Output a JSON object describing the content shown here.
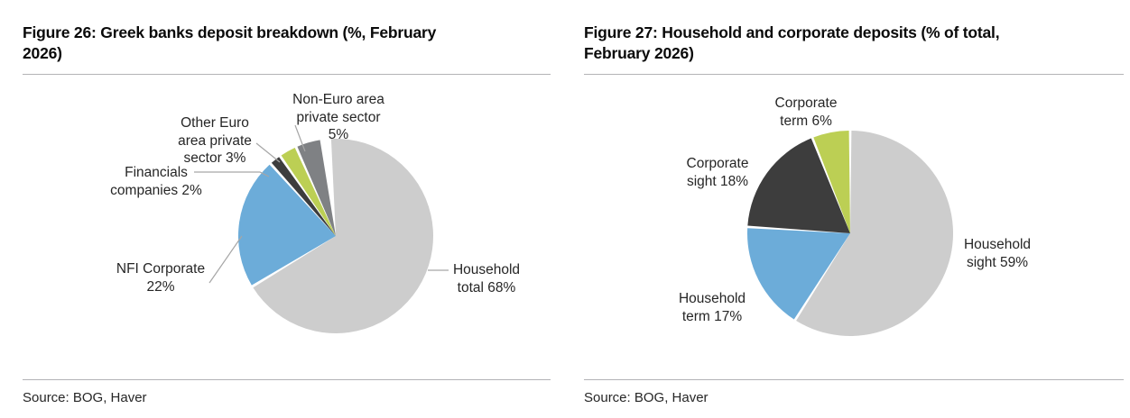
{
  "page": {
    "background": "#ffffff"
  },
  "colors": {
    "leader_line": "#a6a6a6",
    "divider": "#b3b3b6",
    "title_text": "#0a0a0a",
    "label_text": "#262626"
  },
  "chart_data": [
    {
      "type": "pie",
      "figure_id": "Figure 26",
      "title_lines": [
        "Figure 26: Greek banks deposit breakdown (%, February",
        "2026)"
      ],
      "source": "Source: BOG, Haver",
      "start_angle_deg": -6,
      "clockwise": true,
      "legend": "none",
      "labels_position": "outside with leader lines",
      "slices": [
        {
          "label": "Household total",
          "value_pct": 68,
          "color": "#cdcdcd",
          "label_lines": [
            "Household",
            "total 68%"
          ]
        },
        {
          "label": "NFI Corporate",
          "value_pct": 22,
          "color": "#6cacd9",
          "label_lines": [
            "NFI Corporate",
            "22%"
          ]
        },
        {
          "label": "Financials companies",
          "value_pct": 2,
          "color": "#3d3d3d",
          "label_lines": [
            "Financials",
            "companies 2%"
          ]
        },
        {
          "label": "Other Euro area private sector",
          "value_pct": 3,
          "color": "#bccf54",
          "label_lines": [
            "Other Euro",
            "area private",
            "sector 3%"
          ]
        },
        {
          "label": "Non-Euro area private sector",
          "value_pct": 5,
          "color": "#7f8184",
          "label_lines": [
            "Non-Euro area",
            "private sector",
            "5%"
          ]
        }
      ]
    },
    {
      "type": "pie",
      "figure_id": "Figure 27",
      "title_lines": [
        "Figure 27: Household and corporate deposits (% of total,",
        "February 2026)"
      ],
      "source": "Source: BOG, Haver",
      "start_angle_deg": 0,
      "clockwise": true,
      "legend": "none",
      "labels_position": "outside",
      "slices": [
        {
          "label": "Household sight",
          "value_pct": 59,
          "color": "#cdcdcd",
          "label_lines": [
            "Household",
            "sight 59%"
          ]
        },
        {
          "label": "Household term",
          "value_pct": 17,
          "color": "#6cacd9",
          "label_lines": [
            "Household",
            "term 17%"
          ]
        },
        {
          "label": "Corporate sight",
          "value_pct": 18,
          "color": "#3d3d3d",
          "label_lines": [
            "Corporate",
            "sight 18%"
          ]
        },
        {
          "label": "Corporate term",
          "value_pct": 6,
          "color": "#bccf54",
          "label_lines": [
            "Corporate",
            "term 6%"
          ]
        }
      ]
    }
  ]
}
